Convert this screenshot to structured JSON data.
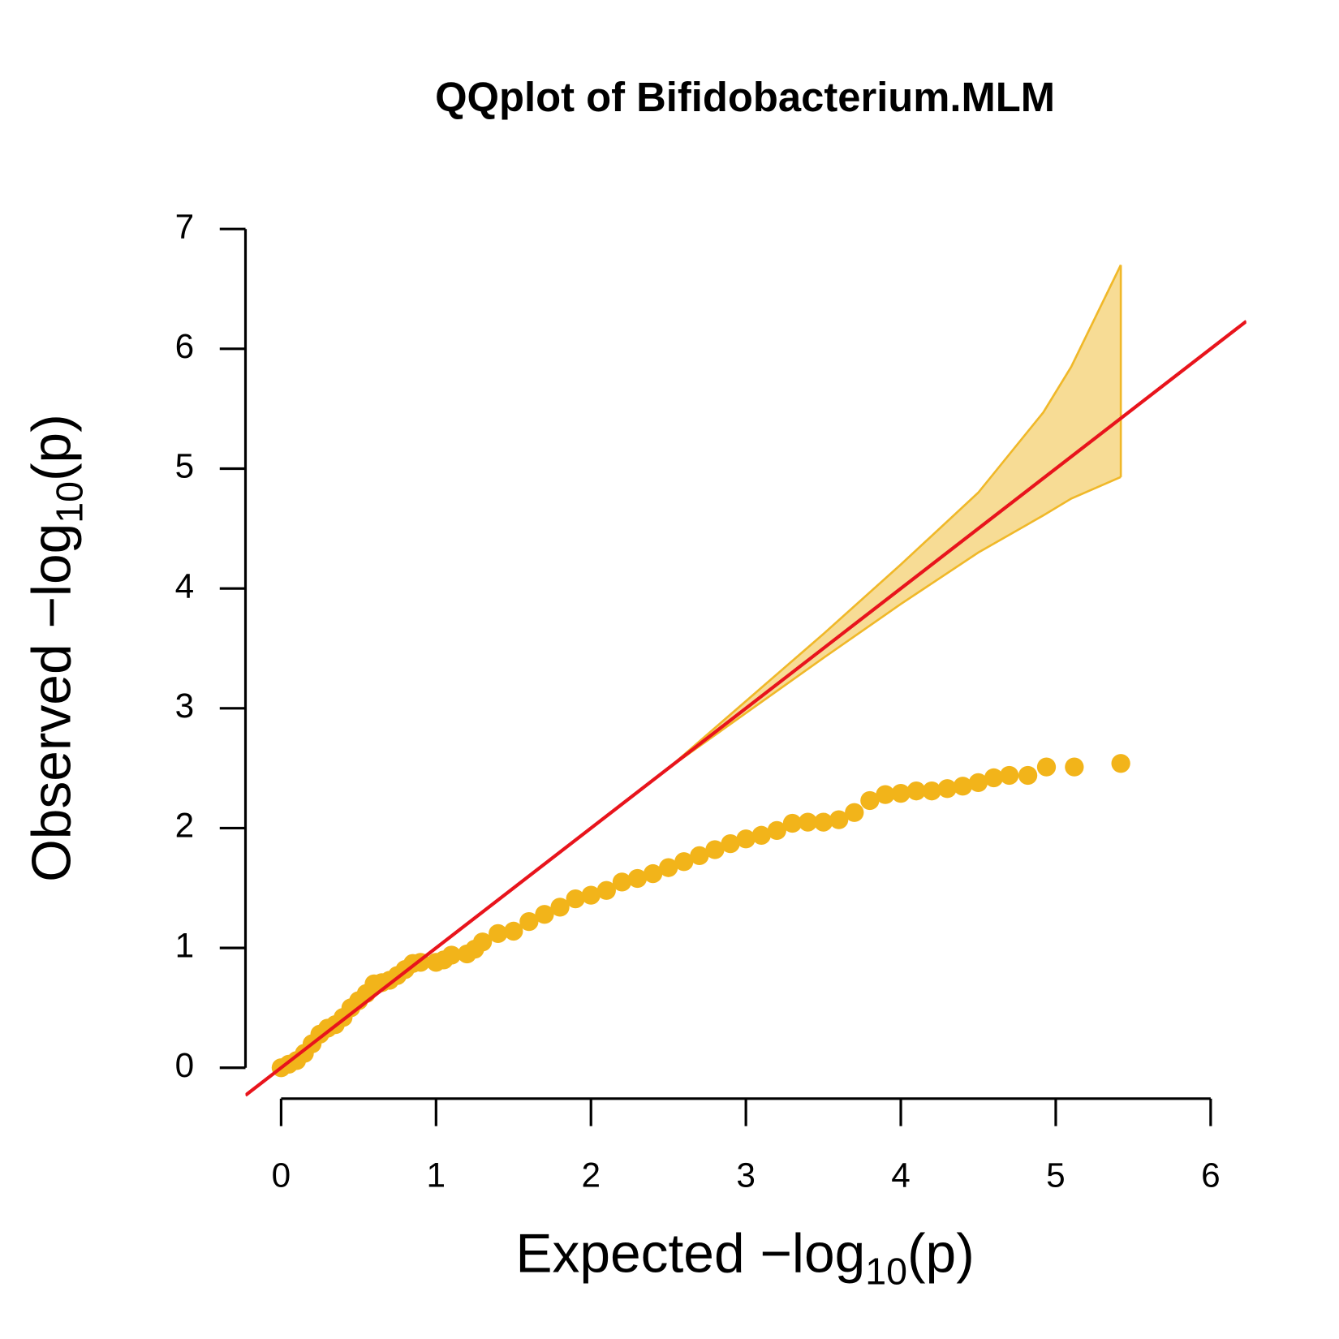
{
  "chart_data": {
    "type": "scatter",
    "title": "QQplot of Bifidobacterium.MLM",
    "xlabel": [
      "Expected  −log",
      "10",
      "(p)"
    ],
    "ylabel": [
      "Observed  −log",
      "10",
      "(p)"
    ],
    "xlim": [
      -0.23,
      6.23
    ],
    "ylim": [
      -0.24,
      7.0
    ],
    "xticks": [
      0,
      1,
      2,
      3,
      4,
      5,
      6
    ],
    "yticks": [
      0,
      1,
      2,
      3,
      4,
      5,
      6,
      7
    ],
    "points": {
      "color": "#f2b41a",
      "x": [
        0,
        0.05,
        0.1,
        0.15,
        0.2,
        0.25,
        0.3,
        0.35,
        0.4,
        0.45,
        0.5,
        0.55,
        0.6,
        0.65,
        0.7,
        0.75,
        0.8,
        0.85,
        0.9,
        1.0,
        1.05,
        1.1,
        1.2,
        1.25,
        1.3,
        1.4,
        1.5,
        1.6,
        1.7,
        1.8,
        1.9,
        2.0,
        2.1,
        2.2,
        2.3,
        2.4,
        2.5,
        2.6,
        2.7,
        2.8,
        2.9,
        3.0,
        3.1,
        3.2,
        3.3,
        3.4,
        3.5,
        3.6,
        3.7,
        3.8,
        3.9,
        4.0,
        4.1,
        4.2,
        4.3,
        4.4,
        4.5,
        4.6,
        4.7,
        4.82,
        4.94,
        5.12,
        5.42
      ],
      "values": [
        0,
        0.03,
        0.06,
        0.12,
        0.2,
        0.28,
        0.33,
        0.36,
        0.42,
        0.5,
        0.56,
        0.62,
        0.7,
        0.71,
        0.73,
        0.77,
        0.82,
        0.87,
        0.88,
        0.88,
        0.9,
        0.94,
        0.95,
        0.99,
        1.05,
        1.12,
        1.14,
        1.22,
        1.28,
        1.34,
        1.41,
        1.44,
        1.48,
        1.55,
        1.58,
        1.62,
        1.67,
        1.72,
        1.77,
        1.82,
        1.87,
        1.91,
        1.94,
        1.98,
        2.04,
        2.05,
        2.05,
        2.07,
        2.13,
        2.23,
        2.28,
        2.29,
        2.31,
        2.31,
        2.33,
        2.35,
        2.38,
        2.42,
        2.44,
        2.44,
        2.51,
        2.51,
        2.54
      ]
    },
    "band": {
      "color": "#f0b829",
      "fill": "#f7dc95",
      "x": [
        2.5,
        3,
        3.5,
        4,
        4.5,
        4.92,
        5.1,
        5.42
      ],
      "upper": [
        2.5,
        3.06,
        3.62,
        4.2,
        4.8,
        5.47,
        5.85,
        6.7
      ],
      "lower": [
        2.5,
        2.96,
        3.42,
        3.87,
        4.3,
        4.61,
        4.75,
        4.93
      ]
    },
    "reference_line": {
      "color": "#e8141c",
      "slope": 1,
      "intercept": 0
    }
  }
}
